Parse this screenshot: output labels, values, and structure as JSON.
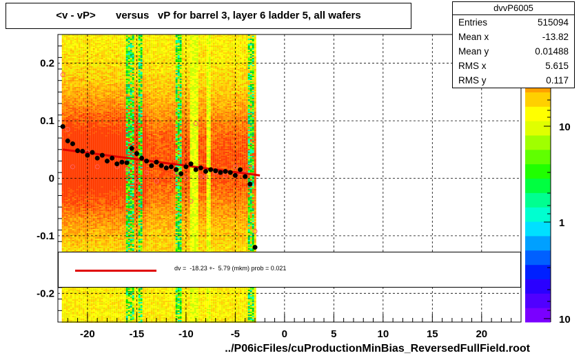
{
  "title": "<v - vP>       versus   vP for barrel 3, layer 6 ladder 5, all wafers",
  "stats": {
    "name": "dvvP6005",
    "rows": [
      {
        "label": "Entries",
        "value": "515094"
      },
      {
        "label": "Mean x",
        "value": "-13.82"
      },
      {
        "label": "Mean y",
        "value": "0.01488"
      },
      {
        "label": "RMS x",
        "value": "5.615"
      },
      {
        "label": "RMS y",
        "value": "0.117"
      }
    ]
  },
  "fit_text": "dv =  -18.23 +-  5.79 (mkm) prob = 0.021",
  "xlabel": "../P06icFiles/cuProductionMinBias_ReversedFullField.root",
  "colors": {
    "fit_line": "#e00000",
    "profile_markers": "#000000",
    "open_markers": "#ff6060"
  },
  "chart_data": {
    "type": "heatmap",
    "xlim": [
      -23,
      24
    ],
    "ylim": [
      -0.25,
      0.25
    ],
    "x_ticks": [
      -20,
      -15,
      -10,
      -5,
      0,
      5,
      10,
      15,
      20
    ],
    "y_ticks": [
      -0.2,
      -0.1,
      0,
      0.1,
      0.2
    ],
    "x_tick_labels": [
      "-20",
      "-15",
      "-10",
      "-5",
      "0",
      "5",
      "10",
      "15",
      "20"
    ],
    "y_tick_labels": [
      "-0.2",
      "-0.1",
      "0",
      "0.1",
      "0.2"
    ],
    "grid": true,
    "log_z": true,
    "z_tick_labels": [
      "10",
      "1",
      "10"
    ],
    "profile": {
      "x": [
        -22.5,
        -22,
        -21.5,
        -21,
        -20.5,
        -20,
        -19.5,
        -19,
        -18.5,
        -18,
        -17.5,
        -17,
        -16.5,
        -16,
        -15.5,
        -15,
        -14.5,
        -14,
        -13.5,
        -13,
        -12.5,
        -12,
        -11.5,
        -11,
        -10.5,
        -10,
        -9.5,
        -9,
        -8.5,
        -8,
        -7.5,
        -7,
        -6.5,
        -6,
        -5.5,
        -5,
        -4.5,
        -4,
        -3.5,
        -3
      ],
      "y": [
        0.09,
        0.065,
        0.06,
        0.048,
        0.047,
        0.04,
        0.045,
        0.035,
        0.04,
        0.03,
        0.035,
        0.025,
        0.028,
        0.027,
        0.052,
        0.043,
        0.035,
        0.03,
        0.022,
        0.028,
        0.022,
        0.018,
        0.02,
        0.015,
        0.008,
        0.02,
        0.025,
        0.015,
        0.018,
        0.012,
        0.015,
        0.013,
        0.01,
        0.012,
        0.01,
        0.005,
        0.015,
        0.003,
        -0.01,
        -0.12
      ]
    },
    "open_markers": {
      "x": [
        -22.5,
        -22,
        -21.5,
        -20,
        -19,
        -18,
        -17,
        -16,
        -15,
        -14,
        -13,
        -12,
        -11,
        -10,
        -9.5,
        -9,
        -8.5,
        -8,
        -7,
        -6,
        -5,
        -4.5,
        -4,
        -3.5,
        -3
      ],
      "y": [
        0.18,
        0.085,
        0.02,
        0.045,
        0.02,
        0.03,
        0.02,
        0.015,
        -0.005,
        0.01,
        -0.005,
        0.02,
        0.01,
        0.0,
        -0.04,
        0.095,
        0.003,
        0.003,
        0.01,
        0.005,
        0.02,
        0.01,
        0.008,
        0.02,
        -0.092
      ]
    },
    "fit": {
      "x": [
        -22.5,
        -2.5
      ],
      "y": [
        0.05,
        0.005
      ]
    }
  }
}
